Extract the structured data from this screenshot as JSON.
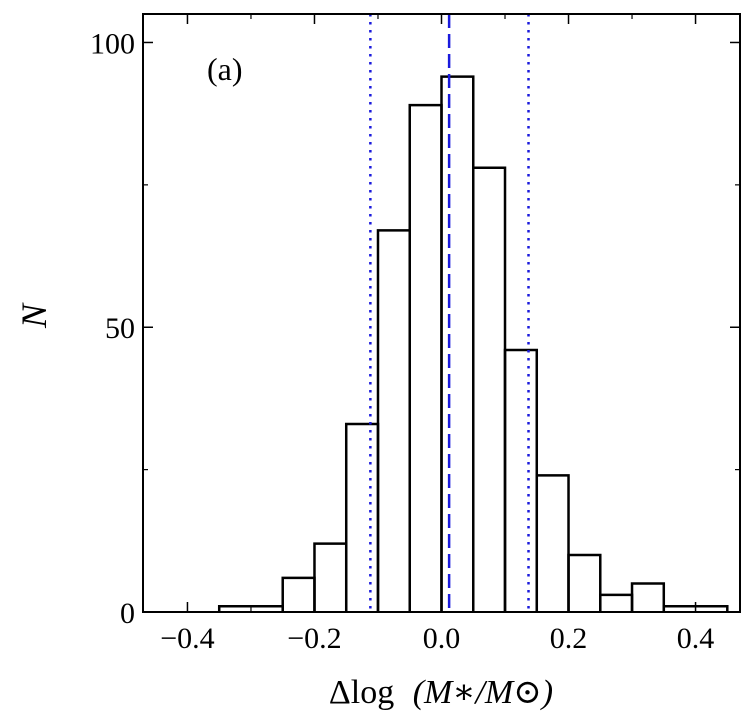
{
  "chart_data": {
    "type": "histogram",
    "title": "",
    "panel_label": "(a)",
    "xlabel_prefix": "Δlog",
    "xlabel_expr": "(M∗/M⊙)",
    "ylabel": "N",
    "xlim": [
      -0.47,
      0.47
    ],
    "ylim": [
      0,
      105
    ],
    "xticks": [
      -0.4,
      -0.2,
      0.0,
      0.2,
      0.4
    ],
    "xtick_labels": [
      "−0.4",
      "−0.2",
      "0.0",
      "0.2",
      "0.4"
    ],
    "xminor": [
      -0.3,
      -0.1,
      0.1,
      0.3
    ],
    "yticks": [
      0,
      50,
      100
    ],
    "ytick_labels": [
      "0",
      "50",
      "100"
    ],
    "yminor": [
      25,
      75
    ],
    "bins": [
      {
        "x0": -0.35,
        "x1": -0.25,
        "count": 1
      },
      {
        "x0": -0.25,
        "x1": -0.2,
        "count": 6
      },
      {
        "x0": -0.2,
        "x1": -0.15,
        "count": 12
      },
      {
        "x0": -0.15,
        "x1": -0.1,
        "count": 33
      },
      {
        "x0": -0.1,
        "x1": -0.05,
        "count": 67
      },
      {
        "x0": -0.05,
        "x1": 0.0,
        "count": 89
      },
      {
        "x0": 0.0,
        "x1": 0.05,
        "count": 94
      },
      {
        "x0": 0.05,
        "x1": 0.1,
        "count": 78
      },
      {
        "x0": 0.1,
        "x1": 0.15,
        "count": 46
      },
      {
        "x0": 0.15,
        "x1": 0.2,
        "count": 24
      },
      {
        "x0": 0.2,
        "x1": 0.25,
        "count": 10
      },
      {
        "x0": 0.25,
        "x1": 0.3,
        "count": 3
      },
      {
        "x0": 0.3,
        "x1": 0.35,
        "count": 5
      },
      {
        "x0": 0.35,
        "x1": 0.45,
        "count": 1
      }
    ],
    "vlines": [
      {
        "name": "median-line",
        "x": 0.012,
        "style": "dashed",
        "color": "#1a1adc"
      },
      {
        "name": "lower-sigma-line",
        "x": -0.112,
        "style": "dotted",
        "color": "#1a1adc"
      },
      {
        "name": "upper-sigma-line",
        "x": 0.137,
        "style": "dotted",
        "color": "#1a1adc"
      }
    ],
    "colors": {
      "histogram": "#000000",
      "axes": "#000000"
    }
  }
}
